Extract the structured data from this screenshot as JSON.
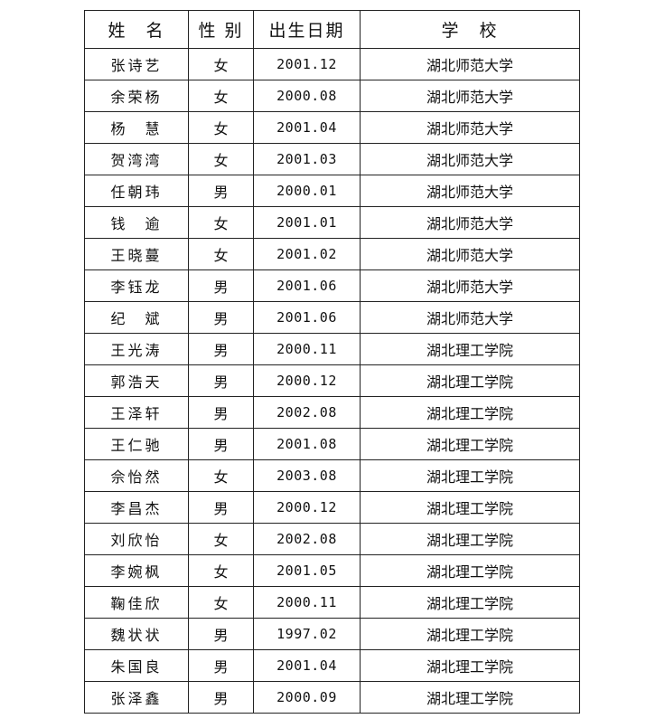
{
  "headers": [
    "姓　名",
    "性 别",
    "出生日期",
    "学　校"
  ],
  "rows": [
    [
      "张诗艺",
      "女",
      "2001.12",
      "湖北师范大学"
    ],
    [
      "余荣杨",
      "女",
      "2000.08",
      "湖北师范大学"
    ],
    [
      "杨　慧",
      "女",
      "2001.04",
      "湖北师范大学"
    ],
    [
      "贺湾湾",
      "女",
      "2001.03",
      "湖北师范大学"
    ],
    [
      "任朝玮",
      "男",
      "2000.01",
      "湖北师范大学"
    ],
    [
      "钱　逾",
      "女",
      "2001.01",
      "湖北师范大学"
    ],
    [
      "王晓蔓",
      "女",
      "2001.02",
      "湖北师范大学"
    ],
    [
      "李钰龙",
      "男",
      "2001.06",
      "湖北师范大学"
    ],
    [
      "纪　斌",
      "男",
      "2001.06",
      "湖北师范大学"
    ],
    [
      "王光涛",
      "男",
      "2000.11",
      "湖北理工学院"
    ],
    [
      "郭浩天",
      "男",
      "2000.12",
      "湖北理工学院"
    ],
    [
      "王泽轩",
      "男",
      "2002.08",
      "湖北理工学院"
    ],
    [
      "王仁驰",
      "男",
      "2001.08",
      "湖北理工学院"
    ],
    [
      "佘怡然",
      "女",
      "2003.08",
      "湖北理工学院"
    ],
    [
      "李昌杰",
      "男",
      "2000.12",
      "湖北理工学院"
    ],
    [
      "刘欣怡",
      "女",
      "2002.08",
      "湖北理工学院"
    ],
    [
      "李婉枫",
      "女",
      "2001.05",
      "湖北理工学院"
    ],
    [
      "鞠佳欣",
      "女",
      "2000.11",
      "湖北理工学院"
    ],
    [
      "魏状状",
      "男",
      "1997.02",
      "湖北理工学院"
    ],
    [
      "朱国良",
      "男",
      "2001.04",
      "湖北理工学院"
    ],
    [
      "张泽鑫",
      "男",
      "2000.09",
      "湖北理工学院"
    ]
  ]
}
